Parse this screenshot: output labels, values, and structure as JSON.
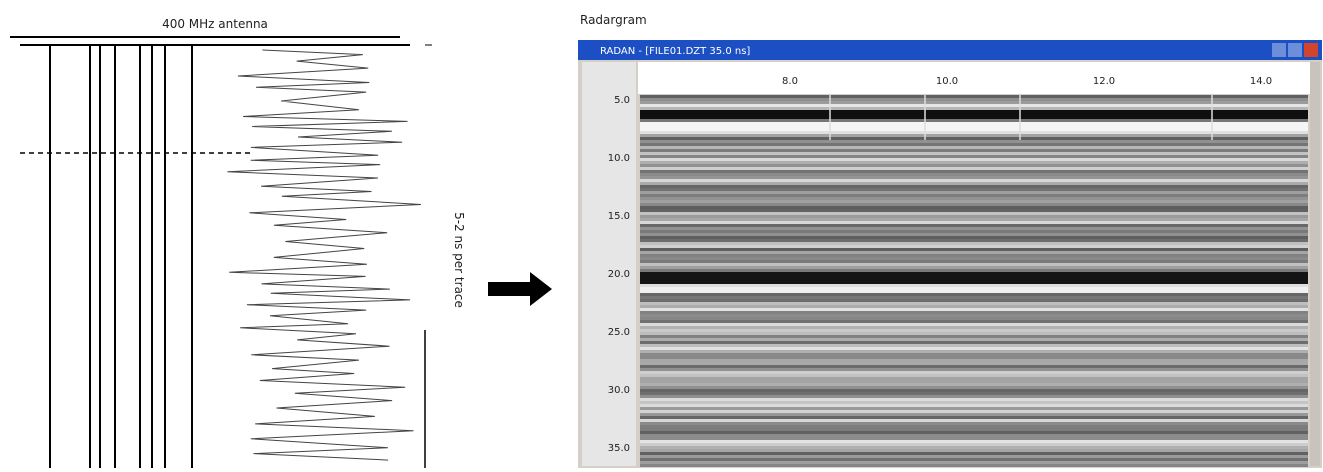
{
  "left_panel": {
    "title": "400 MHz antenna",
    "side_label": "5-2 ns per trace"
  },
  "right_panel": {
    "title": "Radargram",
    "window_title": "RADAN - [FILE01.DZT   35.0 ns]",
    "top_ruler": [
      "8.0",
      "10.0",
      "12.0",
      "14.0"
    ],
    "left_ruler": [
      "5.0",
      "10.0",
      "15.0",
      "20.0",
      "25.0",
      "30.0",
      "35.0"
    ]
  }
}
